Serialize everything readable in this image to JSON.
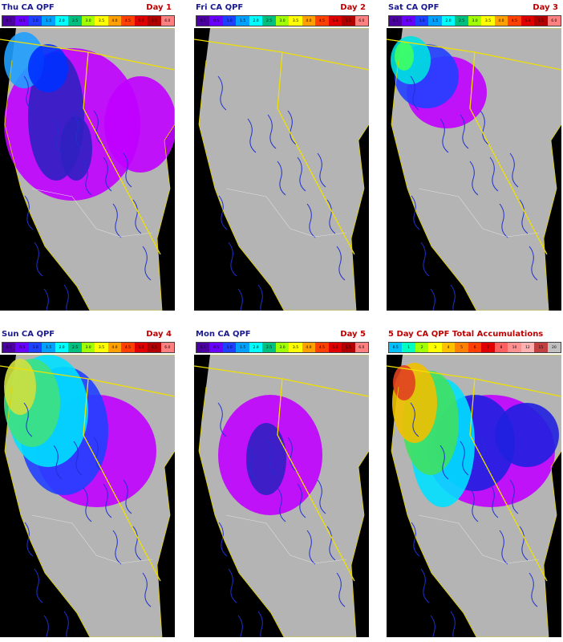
{
  "panels": [
    {
      "title": "Thu CA QPF",
      "day_label": "Day 1",
      "scale_labels": [
        "0.1",
        "0.5",
        "1.0",
        "1.5",
        "2.0",
        "2.5",
        "3.0",
        "3.5",
        "4.0",
        "4.5",
        "5.0",
        "5.5",
        "6.0"
      ]
    },
    {
      "title": "Fri CA QPF",
      "day_label": "Day 2",
      "scale_labels": [
        "0.1",
        "0.5",
        "1.0",
        "1.5",
        "2.0",
        "2.5",
        "3.0",
        "3.5",
        "4.0",
        "4.5",
        "5.0",
        "5.5",
        "6.0"
      ]
    },
    {
      "title": "Sat CA QPF",
      "day_label": "Day 3",
      "scale_labels": [
        "0.1",
        "0.5",
        "1.0",
        "1.5",
        "2.0",
        "2.5",
        "3.0",
        "3.5",
        "4.0",
        "4.5",
        "5.0",
        "5.5",
        "6.0"
      ]
    },
    {
      "title": "Sun CA QPF",
      "day_label": "Day 4",
      "scale_labels": [
        "0.1",
        "0.5",
        "1.0",
        "1.5",
        "2.0",
        "2.5",
        "3.0",
        "3.5",
        "4.0",
        "4.5",
        "5.0",
        "5.5",
        "6.0"
      ]
    },
    {
      "title": "Mon CA QPF",
      "day_label": "Day 5",
      "scale_labels": [
        "0.1",
        "0.5",
        "1.0",
        "1.5",
        "2.0",
        "2.5",
        "3.0",
        "3.5",
        "4.0",
        "4.5",
        "5.0",
        "5.5",
        "6.0"
      ]
    },
    {
      "title": "5 Day CA QPF Total Accumulations",
      "scale_labels": [
        "0.5",
        "1",
        "2",
        "3",
        "4",
        "5",
        "6",
        "7",
        "8",
        "10",
        "12",
        "15",
        "20"
      ]
    }
  ]
}
